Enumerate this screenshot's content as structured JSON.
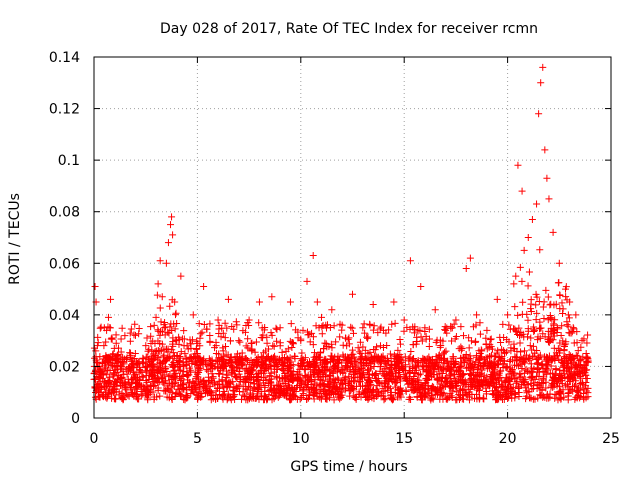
{
  "chart_data": {
    "type": "scatter",
    "title": "Day 028 of 2017, Rate Of TEC Index for receiver rcmn",
    "xlabel": "GPS time / hours",
    "ylabel": "ROTI / TECUs",
    "xlim": [
      0,
      25
    ],
    "ylim": [
      0,
      0.14
    ],
    "xticks": [
      0,
      5,
      10,
      15,
      20,
      25
    ],
    "xtick_labels": [
      "0",
      "5",
      "10",
      "15",
      "20",
      "25"
    ],
    "yticks": [
      0,
      0.02,
      0.04,
      0.06,
      0.08,
      0.1,
      0.12,
      0.14
    ],
    "ytick_labels": [
      "0",
      "0.02",
      "0.04",
      "0.06",
      "0.08",
      "0.1",
      "0.12",
      "0.14"
    ],
    "grid": true,
    "marker": "+",
    "color": "#ff0000",
    "series": [
      {
        "name": "ROTI",
        "x": [
          0.0,
          0.05,
          0.1,
          0.15,
          0.2,
          0.3,
          0.5,
          0.7,
          0.8,
          1.0,
          1.3,
          1.6,
          2.0,
          2.4,
          2.8,
          3.0,
          3.1,
          3.2,
          3.3,
          3.4,
          3.5,
          3.6,
          3.7,
          3.75,
          3.8,
          3.9,
          4.0,
          4.2,
          4.5,
          4.8,
          5.0,
          5.3,
          5.6,
          6.0,
          6.5,
          7.0,
          7.5,
          8.0,
          8.3,
          8.6,
          9.0,
          9.5,
          10.0,
          10.3,
          10.6,
          10.8,
          11.0,
          11.5,
          12.0,
          12.5,
          13.0,
          13.5,
          14.0,
          14.5,
          15.0,
          15.3,
          15.5,
          15.8,
          16.0,
          16.5,
          17.0,
          17.5,
          18.0,
          18.2,
          18.5,
          19.0,
          19.5,
          20.0,
          20.3,
          20.5,
          20.7,
          20.8,
          21.0,
          21.2,
          21.4,
          21.5,
          21.6,
          21.7,
          21.8,
          21.9,
          22.0,
          22.2,
          22.5,
          22.8,
          23.0,
          23.3,
          23.6,
          23.8
        ],
        "y": [
          0.015,
          0.051,
          0.045,
          0.012,
          0.02,
          0.018,
          0.035,
          0.039,
          0.046,
          0.014,
          0.022,
          0.017,
          0.025,
          0.012,
          0.021,
          0.039,
          0.052,
          0.061,
          0.047,
          0.035,
          0.06,
          0.068,
          0.075,
          0.078,
          0.071,
          0.045,
          0.03,
          0.055,
          0.028,
          0.04,
          0.025,
          0.051,
          0.032,
          0.038,
          0.046,
          0.03,
          0.038,
          0.045,
          0.026,
          0.047,
          0.035,
          0.045,
          0.03,
          0.053,
          0.063,
          0.045,
          0.039,
          0.042,
          0.036,
          0.048,
          0.035,
          0.044,
          0.034,
          0.045,
          0.038,
          0.061,
          0.033,
          0.051,
          0.035,
          0.042,
          0.034,
          0.038,
          0.058,
          0.062,
          0.04,
          0.034,
          0.046,
          0.04,
          0.052,
          0.098,
          0.088,
          0.065,
          0.07,
          0.077,
          0.083,
          0.118,
          0.13,
          0.136,
          0.104,
          0.093,
          0.085,
          0.072,
          0.06,
          0.05,
          0.045,
          0.04,
          0.03,
          0.025
        ]
      }
    ]
  }
}
